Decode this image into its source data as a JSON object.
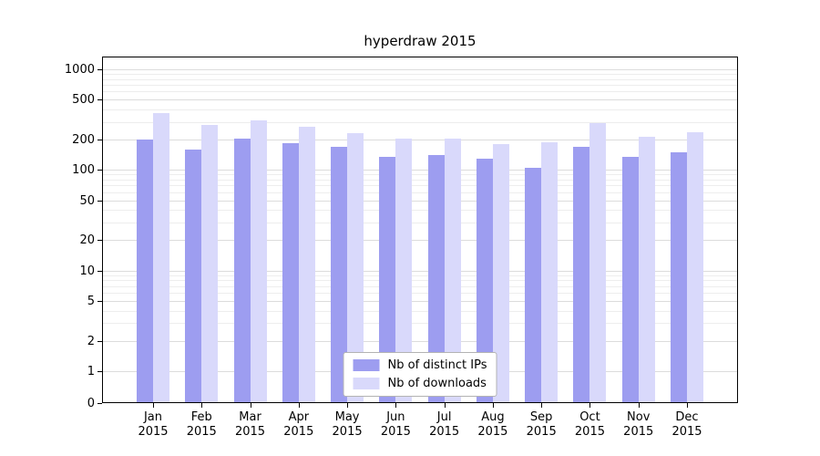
{
  "title": "hyperdraw 2015",
  "chart_data": {
    "type": "bar",
    "title": "hyperdraw 2015",
    "categories": [
      "Jan 2015",
      "Feb 2015",
      "Mar 2015",
      "Apr 2015",
      "May 2015",
      "Jun 2015",
      "Jul 2015",
      "Aug 2015",
      "Sep 2015",
      "Oct 2015",
      "Nov 2015",
      "Dec 2015"
    ],
    "months": [
      "Jan",
      "Feb",
      "Mar",
      "Apr",
      "May",
      "Jun",
      "Jul",
      "Aug",
      "Sep",
      "Oct",
      "Nov",
      "Dec"
    ],
    "year": "2015",
    "series": [
      {
        "name": "Nb of distinct IPs",
        "color": "#9d9df0",
        "values": [
          200,
          160,
          205,
          185,
          170,
          135,
          140,
          130,
          105,
          170,
          135,
          150
        ]
      },
      {
        "name": "Nb of downloads",
        "color": "#d9d9fb",
        "values": [
          370,
          280,
          310,
          270,
          230,
          205,
          205,
          180,
          190,
          290,
          215,
          235
        ]
      }
    ],
    "y_ticks": [
      0,
      1,
      2,
      5,
      10,
      20,
      50,
      100,
      200,
      500,
      1000
    ],
    "y_scale": "symlog",
    "ylim": [
      0,
      1000
    ],
    "xlabel": "",
    "ylabel": "",
    "grid": true,
    "legend_position": "lower-center"
  }
}
